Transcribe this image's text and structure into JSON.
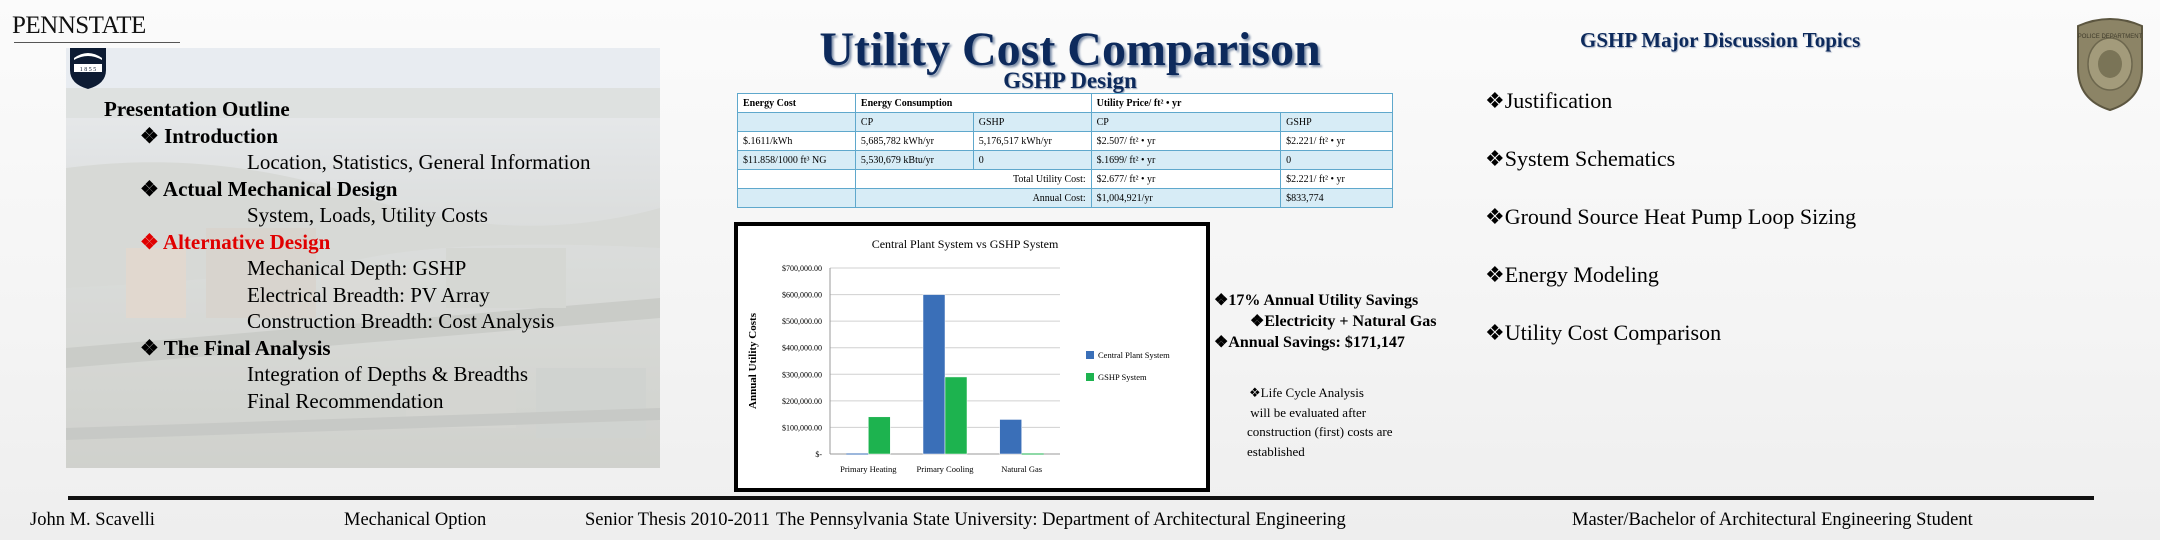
{
  "logo": {
    "text": "PENNSTATE",
    "shield_year": "1 8 5 5"
  },
  "outline": {
    "heading": "Presentation Outline",
    "items": [
      {
        "level": 2,
        "text": "Introduction"
      },
      {
        "level": 3,
        "text": "Location, Statistics, General Information"
      },
      {
        "level": 2,
        "text": "Actual Mechanical Design"
      },
      {
        "level": 3,
        "text": "System, Loads, Utility Costs"
      },
      {
        "level": 2,
        "text": "Alternative Design",
        "highlight": true
      },
      {
        "level": 3,
        "text": "Mechanical Depth: GSHP"
      },
      {
        "level": 3,
        "text": "Electrical Breadth: PV Array"
      },
      {
        "level": 3,
        "text": "Construction Breadth: Cost Analysis"
      },
      {
        "level": 2,
        "text": "The Final Analysis"
      },
      {
        "level": 3,
        "text": "Integration of Depths & Breadths"
      },
      {
        "level": 3,
        "text": "Final Recommendation"
      }
    ]
  },
  "title": "Utility Cost Comparison",
  "subtitle": "GSHP Design",
  "table": {
    "header": [
      "Energy Cost",
      "Energy Consumption",
      "",
      "Utility Price/ ft² • yr",
      ""
    ],
    "subheader": [
      "",
      "CP",
      "GSHP",
      "CP",
      "GSHP"
    ],
    "rows": [
      [
        "$.1611/kWh",
        "5,685,782 kWh/yr",
        "5,176,517 kWh/yr",
        "$2.507/ ft² • yr",
        "$2.221/ ft² • yr"
      ],
      [
        "$11.858/1000 ft³ NG",
        "5,530,679 kBtu/yr",
        "0",
        "$.1699/ ft² • yr",
        "0"
      ]
    ],
    "total": {
      "label": "Total Utility Cost:",
      "cp": "$2.677/ ft² • yr",
      "gshp": "$2.221/ ft² • yr"
    },
    "annual": {
      "label": "Annual Cost:",
      "cp": "$1,004,921/yr",
      "gshp": "$833,774"
    }
  },
  "chart_data": {
    "type": "bar",
    "title": "Central Plant System  vs GSHP System",
    "ylabel": "Annual Utility Costs",
    "xlabel": "",
    "categories": [
      "Primary Heating",
      "Primary Cooling",
      "Natural Gas"
    ],
    "series": [
      {
        "name": "Central Plant System",
        "color": "#3a6fb8",
        "values": [
          0,
          600000,
          130000
        ]
      },
      {
        "name": "GSHP System",
        "color": "#1db34f",
        "values": [
          140000,
          290000,
          0
        ]
      }
    ],
    "ylim": [
      0,
      700000
    ],
    "yticks": [
      "$-",
      "$100,000.00",
      "$200,000.00",
      "$300,000.00",
      "$400,000.00",
      "$500,000.00",
      "$600,000.00",
      "$700,000.00"
    ],
    "legend": "right",
    "grid": true
  },
  "savings": {
    "line1": "❖17% Annual Utility Savings",
    "line2": "❖Electricity + Natural Gas",
    "line3": "❖Annual Savings: $171,147"
  },
  "lca": {
    "line1": "❖Life Cycle Analysis",
    "line2": " will be evaluated after",
    "line3": "construction (first) costs are",
    "line4": "established"
  },
  "topics": {
    "title": "GSHP Major Discussion Topics",
    "items": [
      "❖Justification",
      "❖System Schematics",
      "❖Ground Source Heat Pump Loop Sizing",
      "❖Energy Modeling",
      "❖Utility Cost Comparison"
    ]
  },
  "footer": {
    "name": "John M. Scavelli",
    "option": "Mechanical Option",
    "thesis": "Senior Thesis 2010-2011",
    "university": "The Pennsylvania State University: Department of Architectural Engineering",
    "degree": "Master/Bachelor of Architectural Engineering Student"
  },
  "badge": {
    "text": "POLICE DEPARTMENT"
  },
  "colors": {
    "title": "#0d2a5c",
    "highlight": "#e00000",
    "table_border": "#5fa8cc",
    "table_fill": "#d7ecf6"
  }
}
